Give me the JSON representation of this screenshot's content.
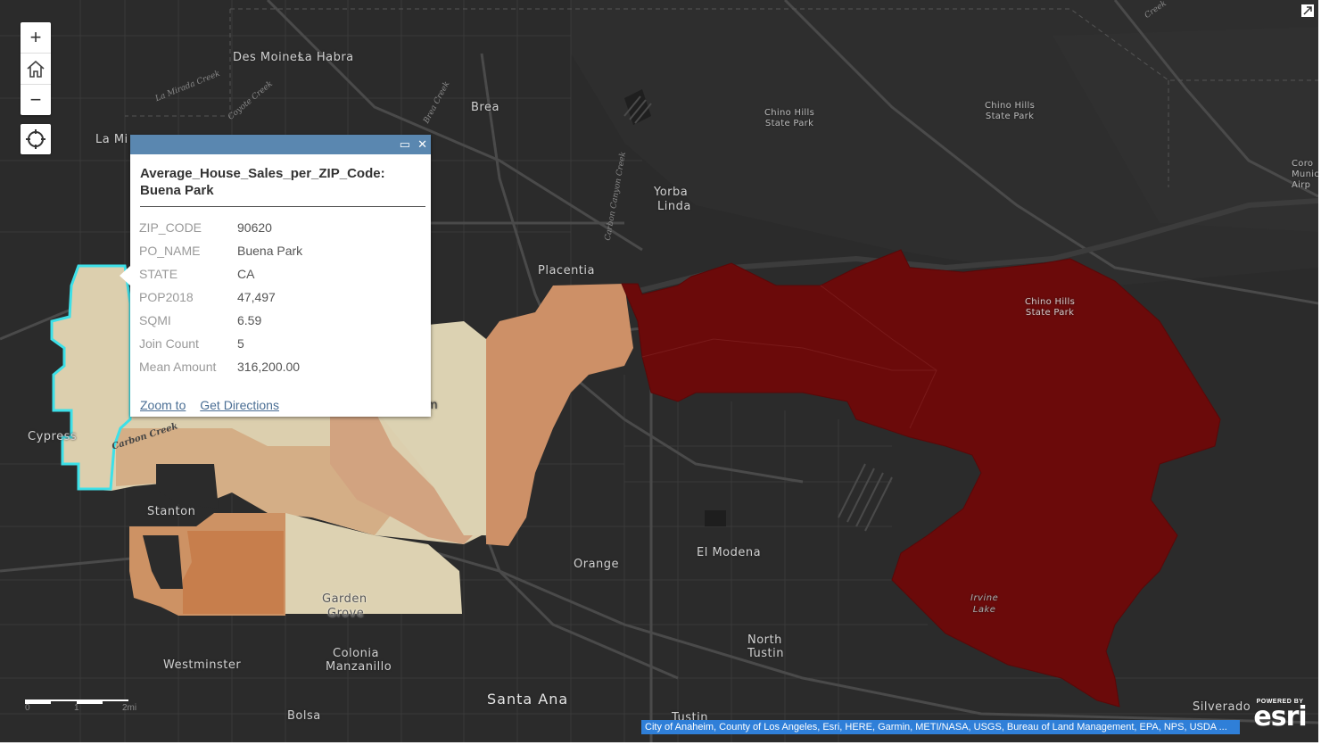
{
  "map": {
    "places": [
      "Des Moines",
      "La Habra",
      "Brea",
      "La Mi",
      "Yorba",
      "Linda",
      "Placentia",
      "Cypress",
      "Stanton",
      "Orange",
      "El Modena",
      "Garden",
      "Grove",
      "North",
      "Tustin",
      "Westminster",
      "Colonia",
      "Manzanillo",
      "Santa Ana",
      "Bolsa",
      "Silverado",
      "Tustin"
    ],
    "parks": {
      "chino1": [
        "Chino Hills",
        "State Park"
      ],
      "chino2": [
        "Chino Hills",
        "State Park"
      ],
      "chino3": [
        "Chino Hills",
        "State Park"
      ],
      "corona": [
        "Coro",
        "Munic",
        "Airp"
      ]
    },
    "water": [
      "Irvine",
      "Lake"
    ],
    "creeks": [
      "La Mirada Creek",
      "Coyote Creek",
      "Brea Creek",
      "Carbon Canyon Creek",
      "Carbon Creek",
      "Creek"
    ],
    "partial_label": "m"
  },
  "controls": {
    "zoom_in": "+",
    "zoom_out": "−"
  },
  "popup": {
    "title": "Average_House_Sales_per_ZIP_Code: Buena Park",
    "fields": [
      {
        "key": "ZIP_CODE",
        "value": "90620"
      },
      {
        "key": "PO_NAME",
        "value": "Buena Park"
      },
      {
        "key": "STATE",
        "value": "CA"
      },
      {
        "key": "POP2018",
        "value": "47,497"
      },
      {
        "key": "SQMI",
        "value": "6.59"
      },
      {
        "key": "Join Count",
        "value": "5"
      },
      {
        "key": "Mean Amount",
        "value": "316,200.00"
      }
    ],
    "zoom_to": "Zoom to",
    "directions": "Get Directions",
    "maximize_icon": "▭",
    "close_icon": "✕"
  },
  "scalebar": {
    "labels": [
      "0",
      "1",
      "2mi"
    ]
  },
  "attribution": "City of Anaheim, County of Los Angeles, Esri, HERE, Garmin, METI/NASA, USGS, Bureau of Land Management, EPA, NPS, USDA ...",
  "esri": {
    "powered": "POWERED BY",
    "logo": "esri"
  },
  "colors": {
    "background": "#2b2b2b",
    "zip_lightest": "#d8cdae",
    "zip_light": "#cfa27c",
    "zip_mid": "#c98a5c",
    "zip_dark": "#c17b4c",
    "zip_darkest": "#6b0a0a",
    "highlight": "#3de0e8",
    "popup_bar": "#5a87b0"
  }
}
